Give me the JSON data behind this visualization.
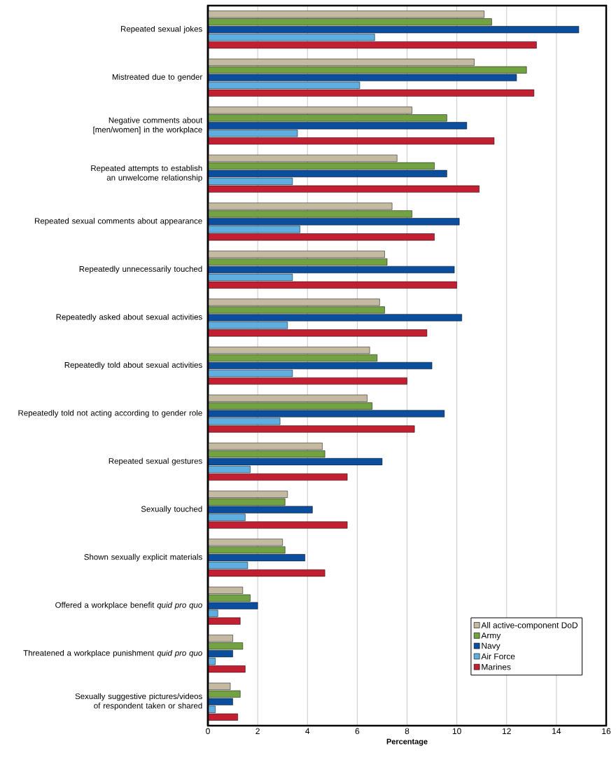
{
  "chart_data": {
    "type": "bar",
    "orientation": "horizontal",
    "xlabel": "Percentage",
    "categories": [
      "Repeated sexual jokes",
      "Mistreated due to gender",
      "Negative comments about [men/women] in the workplace",
      "Repeated attempts to establish an unwelcome relationship",
      "Repeated sexual comments about appearance",
      "Repeatedly unnecessarily touched",
      "Repeatedly asked about sexual activities",
      "Repeatedly told about sexual activities",
      "Repeatedly told not acting according to gender role",
      "Repeated sexual gestures",
      "Sexually touched",
      "Shown sexually explicit materials",
      "Offered a workplace benefit *quid pro quo*",
      "Threatened a workplace punishment *quid pro quo*",
      "Sexually suggestive pictures/videos of respondent taken or shared"
    ],
    "series": [
      {
        "name": "All active-component DoD",
        "color": "#c4b9a1",
        "values": [
          11.1,
          10.7,
          8.2,
          7.6,
          7.4,
          7.1,
          6.9,
          6.5,
          6.4,
          4.6,
          3.2,
          3.0,
          1.4,
          1.0,
          0.9
        ]
      },
      {
        "name": "Army",
        "color": "#73a243",
        "values": [
          11.4,
          12.8,
          9.6,
          9.1,
          8.2,
          7.2,
          7.1,
          6.8,
          6.6,
          4.7,
          3.1,
          3.1,
          1.7,
          1.4,
          1.3
        ]
      },
      {
        "name": "Navy",
        "color": "#0b4e9e",
        "values": [
          14.9,
          12.4,
          10.4,
          9.6,
          10.1,
          9.9,
          10.2,
          9.0,
          9.5,
          7.0,
          4.2,
          3.9,
          2.0,
          1.0,
          1.0
        ]
      },
      {
        "name": "Air Force",
        "color": "#5eaee2",
        "values": [
          6.7,
          6.1,
          3.6,
          3.4,
          3.7,
          3.4,
          3.2,
          3.4,
          2.9,
          1.7,
          1.5,
          1.6,
          0.4,
          0.3,
          0.3
        ]
      },
      {
        "name": "Marines",
        "color": "#c21f32",
        "values": [
          13.2,
          13.1,
          11.5,
          10.9,
          9.1,
          10.0,
          8.8,
          8.0,
          8.3,
          5.6,
          5.6,
          4.7,
          1.3,
          1.5,
          1.2
        ]
      }
    ],
    "xlim": [
      0,
      16
    ],
    "xticks": [
      0,
      2,
      4,
      6,
      8,
      10,
      12,
      14,
      16
    ],
    "grid": "x",
    "legend": "bottom right"
  }
}
